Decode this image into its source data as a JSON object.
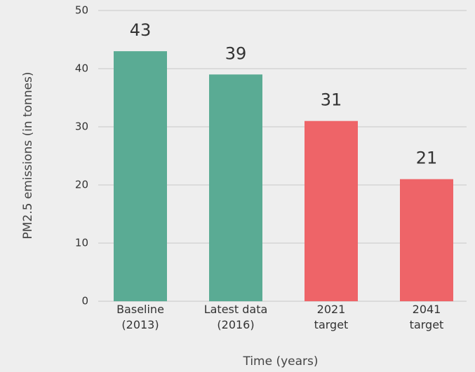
{
  "chart_data": {
    "type": "bar",
    "categories": [
      "Baseline\n(2013)",
      "Latest data\n(2016)",
      "2021\ntarget",
      "2041\ntarget"
    ],
    "values": [
      43,
      39,
      31,
      21
    ],
    "colors": [
      "#5aab94",
      "#5aab94",
      "#ee6468",
      "#ee6468"
    ],
    "ylim": [
      0,
      50
    ],
    "yticks": [
      0,
      10,
      20,
      30,
      40,
      50
    ],
    "grid": true,
    "y_label": "PM2.5 emissions (in tonnes)",
    "x_label": "Time (years)"
  }
}
